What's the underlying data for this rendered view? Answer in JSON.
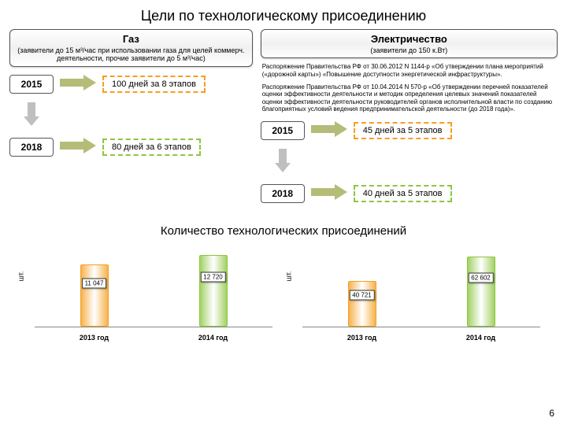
{
  "title": "Цели по технологическому присоединению",
  "gas": {
    "header": "Газ",
    "sub": "(заявители до 15 м³/час при использовании газа для целей коммерч. деятельности, прочие заявители до 5 м³/час)",
    "rows": [
      {
        "year": "2015",
        "text": "100 дней за 8 этапов",
        "color": "#f4a022"
      },
      {
        "year": "2018",
        "text": "80 дней за 6 этапов",
        "color": "#8cc63f"
      }
    ]
  },
  "elec": {
    "header": "Электричество",
    "sub": "(заявители до 150 к.Вт)",
    "decree1": "Распоряжение Правительства РФ от 30.06.2012 N 1144-р «Об утверждении плана мероприятий («дорожной карты») «Повышение доступности энергетической инфраструктуры».",
    "decree2": "Распоряжение Правительства РФ от 10.04.2014 N 570-р «Об утверждении перечней показателей оценки эффективности деятельности и методик определения целевых значений показателей оценки эффективности деятельности руководителей органов исполнительной власти по созданию благоприятных условий ведения предпринимательской деятельности (до 2018 года)».",
    "rows": [
      {
        "year": "2015",
        "text": "45 дней за 5 этапов",
        "color": "#f4a022"
      },
      {
        "year": "2018",
        "text": "40 дней за 5 этапов",
        "color": "#8cc63f"
      }
    ]
  },
  "chart_title": "Количество технологических присоединений",
  "ylabel": "шт.",
  "chart_left": {
    "bars": [
      {
        "label": "11 047",
        "value": 11047,
        "color": "#f4a022",
        "xlabel": "2013 год"
      },
      {
        "label": "12 720",
        "value": 12720,
        "color": "#8cc63f",
        "xlabel": "2014 год"
      }
    ],
    "ymax": 14000
  },
  "chart_right": {
    "bars": [
      {
        "label": "40 721",
        "value": 40721,
        "color": "#f4a022",
        "xlabel": "2013 год"
      },
      {
        "label": "62 602",
        "value": 62602,
        "color": "#8cc63f",
        "xlabel": "2014 год"
      }
    ],
    "ymax": 70000
  },
  "arrow_colors": {
    "right": "#a8b060",
    "down": "#bfbfbf"
  },
  "page_number": "6"
}
